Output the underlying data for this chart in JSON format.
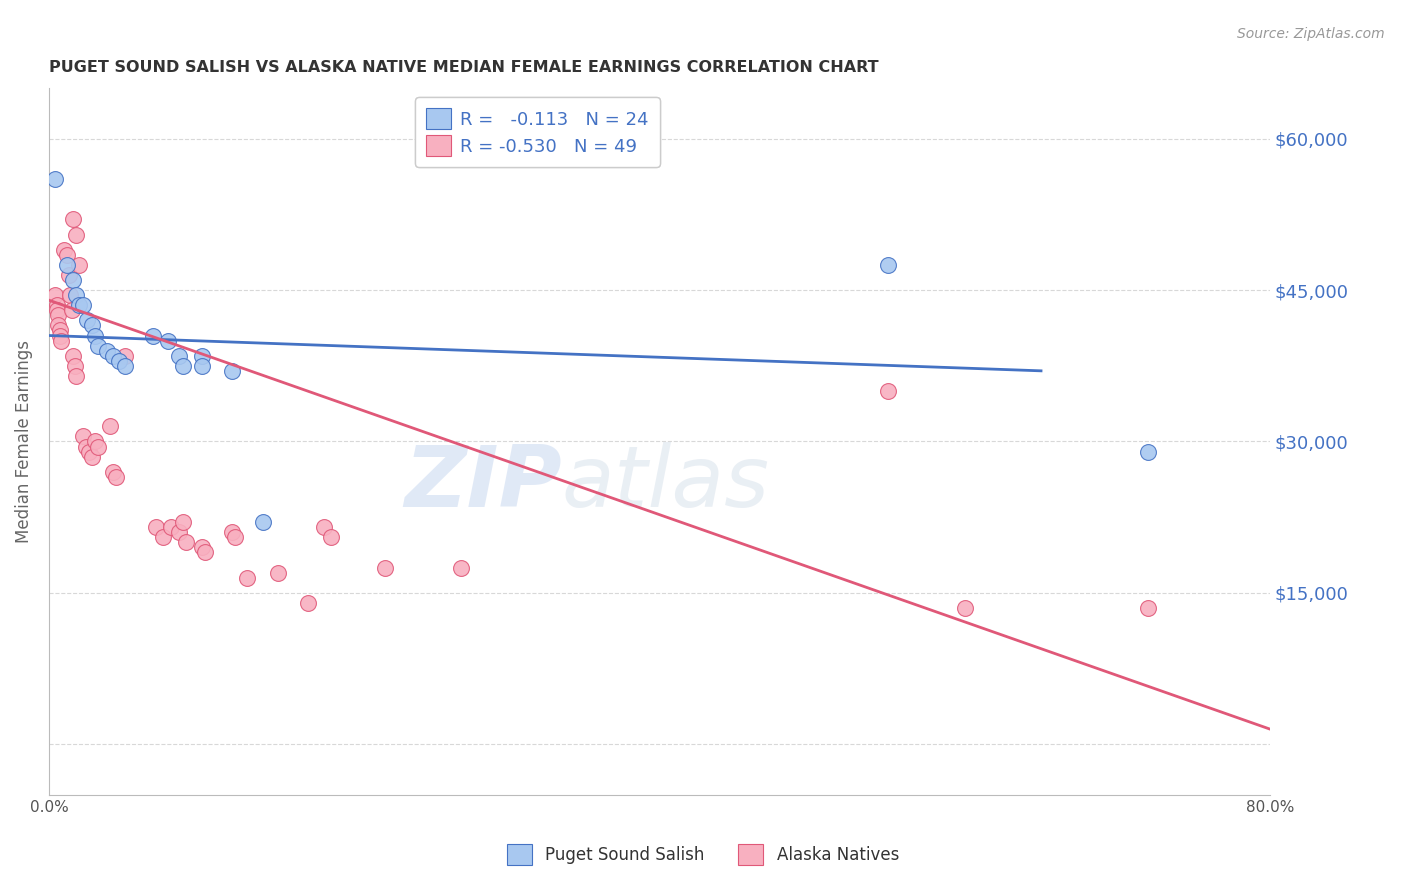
{
  "title": "PUGET SOUND SALISH VS ALASKA NATIVE MEDIAN FEMALE EARNINGS CORRELATION CHART",
  "source": "Source: ZipAtlas.com",
  "ylabel": "Median Female Earnings",
  "xlim": [
    0.0,
    0.8
  ],
  "ylim": [
    -5000,
    65000
  ],
  "yticks": [
    0,
    15000,
    30000,
    45000,
    60000
  ],
  "ytick_labels": [
    "",
    "$15,000",
    "$30,000",
    "$45,000",
    "$60,000"
  ],
  "xticks": [
    0.0,
    0.1,
    0.2,
    0.3,
    0.4,
    0.5,
    0.6,
    0.7,
    0.8
  ],
  "xtick_labels": [
    "0.0%",
    "",
    "",
    "",
    "",
    "",
    "",
    "",
    "80.0%"
  ],
  "blue_color": "#a8c8f0",
  "pink_color": "#f8b0c0",
  "blue_line_color": "#4472c4",
  "pink_line_color": "#e05878",
  "legend_r_blue": "-0.113",
  "legend_n_blue": "24",
  "legend_r_pink": "-0.530",
  "legend_n_pink": "49",
  "legend_label_blue": "Puget Sound Salish",
  "legend_label_pink": "Alaska Natives",
  "watermark_zip": "ZIP",
  "watermark_atlas": "atlas",
  "blue_points": [
    [
      0.004,
      56000
    ],
    [
      0.012,
      47500
    ],
    [
      0.016,
      46000
    ],
    [
      0.018,
      44500
    ],
    [
      0.02,
      43500
    ],
    [
      0.022,
      43500
    ],
    [
      0.025,
      42000
    ],
    [
      0.028,
      41500
    ],
    [
      0.03,
      40500
    ],
    [
      0.032,
      39500
    ],
    [
      0.038,
      39000
    ],
    [
      0.042,
      38500
    ],
    [
      0.046,
      38000
    ],
    [
      0.05,
      37500
    ],
    [
      0.068,
      40500
    ],
    [
      0.078,
      40000
    ],
    [
      0.085,
      38500
    ],
    [
      0.088,
      37500
    ],
    [
      0.1,
      38500
    ],
    [
      0.1,
      37500
    ],
    [
      0.12,
      37000
    ],
    [
      0.14,
      22000
    ],
    [
      0.55,
      47500
    ],
    [
      0.72,
      29000
    ]
  ],
  "pink_points": [
    [
      0.004,
      44500
    ],
    [
      0.005,
      43500
    ],
    [
      0.005,
      43000
    ],
    [
      0.006,
      42500
    ],
    [
      0.006,
      41500
    ],
    [
      0.007,
      41000
    ],
    [
      0.007,
      40500
    ],
    [
      0.008,
      40000
    ],
    [
      0.01,
      49000
    ],
    [
      0.012,
      48500
    ],
    [
      0.013,
      46500
    ],
    [
      0.014,
      44500
    ],
    [
      0.015,
      43000
    ],
    [
      0.016,
      38500
    ],
    [
      0.017,
      37500
    ],
    [
      0.018,
      36500
    ],
    [
      0.016,
      52000
    ],
    [
      0.018,
      50500
    ],
    [
      0.02,
      47500
    ],
    [
      0.022,
      30500
    ],
    [
      0.024,
      29500
    ],
    [
      0.026,
      29000
    ],
    [
      0.028,
      28500
    ],
    [
      0.03,
      30000
    ],
    [
      0.032,
      29500
    ],
    [
      0.04,
      31500
    ],
    [
      0.042,
      27000
    ],
    [
      0.044,
      26500
    ],
    [
      0.05,
      38500
    ],
    [
      0.07,
      21500
    ],
    [
      0.075,
      20500
    ],
    [
      0.08,
      21500
    ],
    [
      0.085,
      21000
    ],
    [
      0.088,
      22000
    ],
    [
      0.09,
      20000
    ],
    [
      0.1,
      19500
    ],
    [
      0.102,
      19000
    ],
    [
      0.12,
      21000
    ],
    [
      0.122,
      20500
    ],
    [
      0.13,
      16500
    ],
    [
      0.15,
      17000
    ],
    [
      0.17,
      14000
    ],
    [
      0.18,
      21500
    ],
    [
      0.185,
      20500
    ],
    [
      0.22,
      17500
    ],
    [
      0.27,
      17500
    ],
    [
      0.55,
      35000
    ],
    [
      0.6,
      13500
    ],
    [
      0.72,
      13500
    ]
  ],
  "blue_line_x": [
    0.0,
    0.65
  ],
  "blue_line_y": [
    40500,
    37000
  ],
  "pink_line_x": [
    0.0,
    0.8
  ],
  "pink_line_y": [
    44000,
    1500
  ],
  "background_color": "#ffffff",
  "grid_color": "#d8d8d8"
}
